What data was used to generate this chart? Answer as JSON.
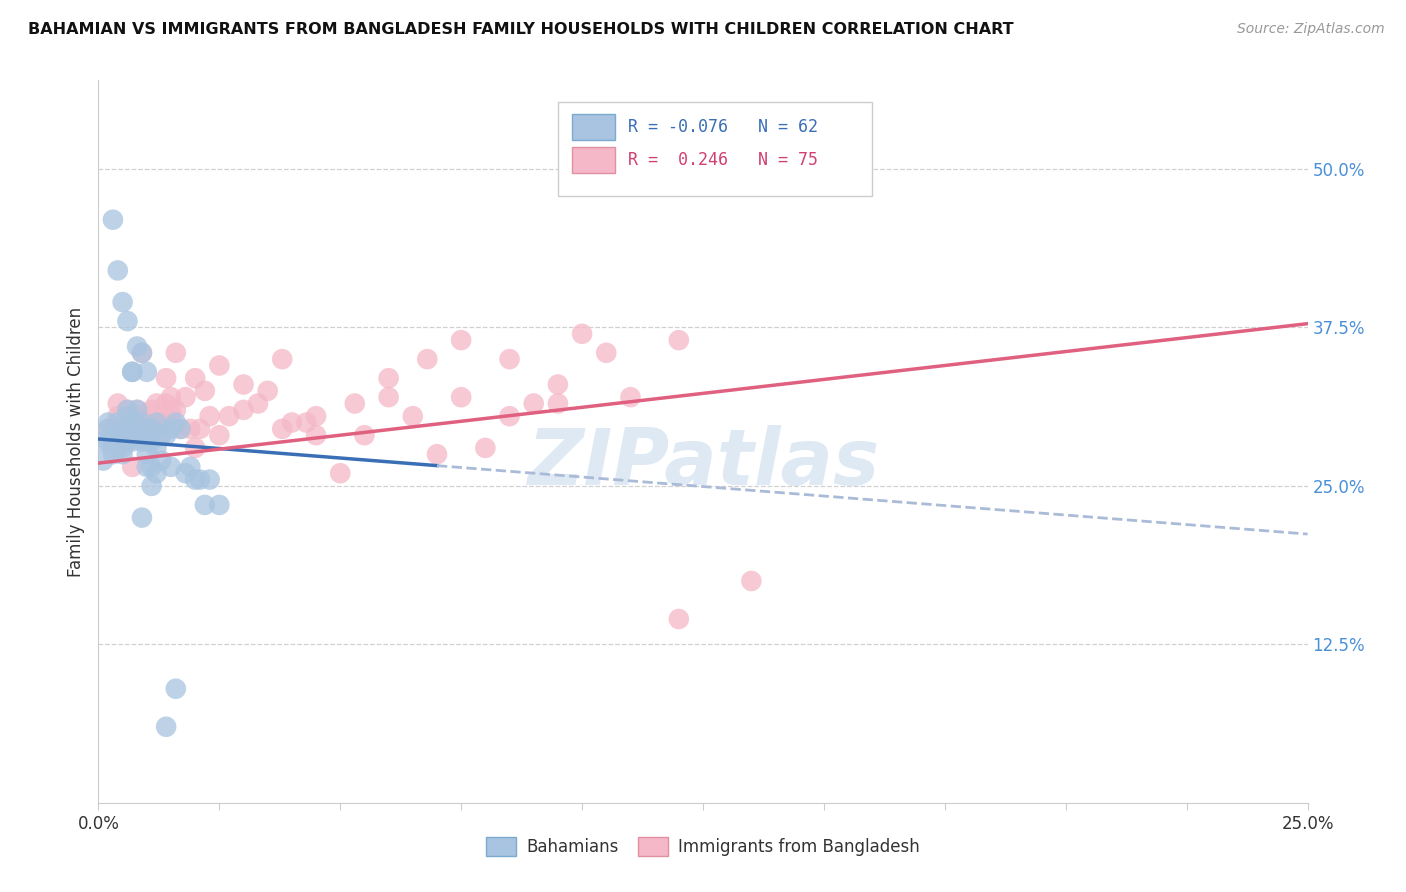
{
  "title": "BAHAMIAN VS IMMIGRANTS FROM BANGLADESH FAMILY HOUSEHOLDS WITH CHILDREN CORRELATION CHART",
  "source": "Source: ZipAtlas.com",
  "ylabel": "Family Households with Children",
  "right_yticks": [
    "50.0%",
    "37.5%",
    "25.0%",
    "12.5%"
  ],
  "right_ytick_vals": [
    0.5,
    0.375,
    0.25,
    0.125
  ],
  "xlim": [
    0.0,
    0.25
  ],
  "ylim": [
    0.0,
    0.57
  ],
  "legend_r_blue": "-0.076",
  "legend_n_blue": "62",
  "legend_r_pink": "0.246",
  "legend_n_pink": "75",
  "blue_color": "#a8c4e0",
  "pink_color": "#f4b8c8",
  "blue_line_solid_color": "#3a6fb5",
  "blue_line_dash_color": "#aabbd8",
  "pink_line_color": "#e06080",
  "watermark": "ZIPatlas",
  "blue_scatter_x": [
    0.001,
    0.001,
    0.002,
    0.002,
    0.002,
    0.003,
    0.003,
    0.003,
    0.004,
    0.004,
    0.004,
    0.005,
    0.005,
    0.005,
    0.005,
    0.006,
    0.006,
    0.006,
    0.006,
    0.007,
    0.007,
    0.007,
    0.008,
    0.008,
    0.008,
    0.009,
    0.009,
    0.009,
    0.01,
    0.01,
    0.01,
    0.011,
    0.011,
    0.011,
    0.012,
    0.012,
    0.013,
    0.013,
    0.014,
    0.015,
    0.015,
    0.016,
    0.017,
    0.018,
    0.019,
    0.02,
    0.021,
    0.022,
    0.023,
    0.025,
    0.003,
    0.004,
    0.005,
    0.006,
    0.007,
    0.008,
    0.009,
    0.01,
    0.011,
    0.012,
    0.014,
    0.016
  ],
  "blue_scatter_y": [
    0.285,
    0.27,
    0.295,
    0.285,
    0.3,
    0.285,
    0.275,
    0.29,
    0.29,
    0.28,
    0.3,
    0.28,
    0.295,
    0.285,
    0.275,
    0.305,
    0.295,
    0.285,
    0.31,
    0.3,
    0.285,
    0.34,
    0.31,
    0.29,
    0.295,
    0.355,
    0.3,
    0.285,
    0.34,
    0.295,
    0.275,
    0.285,
    0.295,
    0.265,
    0.28,
    0.3,
    0.27,
    0.29,
    0.29,
    0.265,
    0.295,
    0.3,
    0.295,
    0.26,
    0.265,
    0.255,
    0.255,
    0.235,
    0.255,
    0.235,
    0.46,
    0.42,
    0.395,
    0.38,
    0.34,
    0.36,
    0.225,
    0.265,
    0.25,
    0.26,
    0.06,
    0.09
  ],
  "pink_scatter_x": [
    0.002,
    0.003,
    0.004,
    0.004,
    0.005,
    0.005,
    0.006,
    0.006,
    0.007,
    0.007,
    0.008,
    0.008,
    0.009,
    0.009,
    0.01,
    0.01,
    0.011,
    0.011,
    0.012,
    0.012,
    0.013,
    0.013,
    0.014,
    0.014,
    0.015,
    0.015,
    0.016,
    0.017,
    0.018,
    0.019,
    0.02,
    0.021,
    0.022,
    0.023,
    0.025,
    0.027,
    0.03,
    0.033,
    0.035,
    0.038,
    0.04,
    0.043,
    0.045,
    0.05,
    0.055,
    0.06,
    0.065,
    0.07,
    0.075,
    0.08,
    0.085,
    0.09,
    0.095,
    0.1,
    0.11,
    0.12,
    0.007,
    0.009,
    0.011,
    0.013,
    0.016,
    0.02,
    0.025,
    0.03,
    0.038,
    0.045,
    0.053,
    0.06,
    0.068,
    0.075,
    0.085,
    0.095,
    0.105,
    0.12,
    0.135
  ],
  "pink_scatter_y": [
    0.295,
    0.28,
    0.305,
    0.315,
    0.295,
    0.29,
    0.285,
    0.31,
    0.3,
    0.295,
    0.29,
    0.31,
    0.295,
    0.305,
    0.285,
    0.3,
    0.29,
    0.295,
    0.295,
    0.315,
    0.3,
    0.29,
    0.315,
    0.335,
    0.31,
    0.32,
    0.31,
    0.295,
    0.32,
    0.295,
    0.335,
    0.295,
    0.325,
    0.305,
    0.29,
    0.305,
    0.33,
    0.315,
    0.325,
    0.295,
    0.3,
    0.3,
    0.29,
    0.26,
    0.29,
    0.335,
    0.305,
    0.275,
    0.365,
    0.28,
    0.305,
    0.315,
    0.315,
    0.37,
    0.32,
    0.365,
    0.265,
    0.355,
    0.31,
    0.3,
    0.355,
    0.28,
    0.345,
    0.31,
    0.35,
    0.305,
    0.315,
    0.32,
    0.35,
    0.32,
    0.35,
    0.33,
    0.355,
    0.145,
    0.175
  ]
}
